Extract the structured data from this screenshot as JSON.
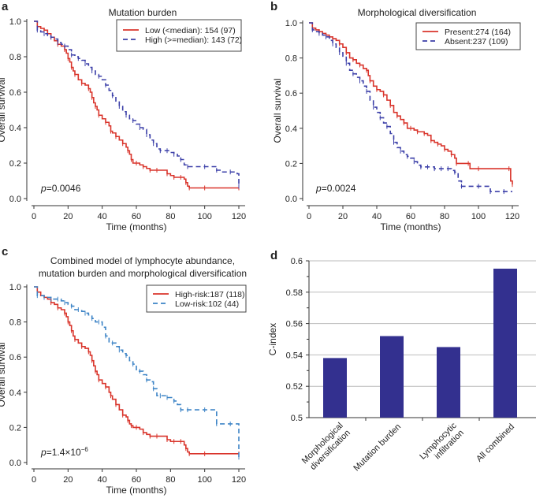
{
  "colors": {
    "red": "#d9342b",
    "blue_dark": "#3b3fa8",
    "blue_light": "#3d84c6",
    "bar": "#33308f",
    "axis": "#333333",
    "grid": "#bbbbbb"
  },
  "chart_data": [
    {
      "panel": "a",
      "type": "line",
      "title": "Mutation burden",
      "xlabel": "Time (months)",
      "ylabel": "Overall survival",
      "xlim": [
        0,
        120
      ],
      "ylim": [
        0,
        1.0
      ],
      "xticks": [
        "0",
        "20",
        "40",
        "60",
        "80",
        "100",
        "120"
      ],
      "yticks": [
        "0.0",
        "0.2",
        "0.4",
        "0.6",
        "0.8",
        "1.0"
      ],
      "legend_position": "top-right",
      "annotation": {
        "italic": "p",
        "text": "=0.0046"
      },
      "series": [
        {
          "name": "Low (<median): 154 (97)",
          "style": "solid",
          "color_key": "red",
          "x": [
            0,
            2,
            4,
            6,
            8,
            10,
            12,
            14,
            16,
            18,
            19,
            20,
            21,
            22,
            23,
            24,
            26,
            28,
            30,
            32,
            33,
            34,
            35,
            36,
            37,
            38,
            40,
            42,
            44,
            45,
            46,
            48,
            50,
            52,
            54,
            55,
            56,
            57,
            58,
            60,
            62,
            64,
            66,
            68,
            70,
            72,
            76,
            78,
            80,
            82,
            84,
            86,
            88,
            89,
            90,
            91,
            95,
            100,
            110,
            120
          ],
          "y": [
            1.0,
            0.97,
            0.96,
            0.95,
            0.93,
            0.91,
            0.89,
            0.87,
            0.86,
            0.84,
            0.82,
            0.79,
            0.77,
            0.74,
            0.72,
            0.7,
            0.67,
            0.65,
            0.64,
            0.62,
            0.6,
            0.57,
            0.54,
            0.52,
            0.5,
            0.47,
            0.45,
            0.43,
            0.41,
            0.38,
            0.37,
            0.35,
            0.33,
            0.31,
            0.29,
            0.27,
            0.25,
            0.22,
            0.2,
            0.2,
            0.19,
            0.18,
            0.17,
            0.16,
            0.16,
            0.16,
            0.16,
            0.14,
            0.13,
            0.12,
            0.12,
            0.12,
            0.11,
            0.09,
            0.07,
            0.06,
            0.06,
            0.06,
            0.06,
            0.06
          ]
        },
        {
          "name": "High (>=median): 143 (72)",
          "style": "dashed",
          "color_key": "blue_dark",
          "x": [
            0,
            2,
            4,
            6,
            8,
            10,
            12,
            14,
            16,
            18,
            20,
            22,
            24,
            26,
            28,
            30,
            32,
            34,
            36,
            38,
            40,
            42,
            44,
            46,
            48,
            50,
            52,
            54,
            56,
            58,
            60,
            62,
            64,
            66,
            68,
            70,
            72,
            74,
            76,
            78,
            80,
            82,
            84,
            86,
            88,
            90,
            95,
            100,
            105,
            107,
            110,
            115,
            119,
            120
          ],
          "y": [
            1.0,
            0.95,
            0.94,
            0.93,
            0.92,
            0.91,
            0.9,
            0.88,
            0.87,
            0.86,
            0.84,
            0.81,
            0.8,
            0.79,
            0.78,
            0.76,
            0.74,
            0.72,
            0.7,
            0.69,
            0.67,
            0.64,
            0.61,
            0.58,
            0.55,
            0.52,
            0.49,
            0.47,
            0.45,
            0.44,
            0.42,
            0.4,
            0.39,
            0.36,
            0.33,
            0.31,
            0.28,
            0.27,
            0.27,
            0.27,
            0.26,
            0.25,
            0.24,
            0.22,
            0.19,
            0.18,
            0.18,
            0.18,
            0.18,
            0.16,
            0.15,
            0.15,
            0.14,
            0.07
          ]
        }
      ]
    },
    {
      "panel": "b",
      "type": "line",
      "title": "Morphological diversification",
      "xlabel": "Time (months)",
      "ylabel": "Overall survival",
      "xlim": [
        0,
        120
      ],
      "ylim": [
        0,
        1.0
      ],
      "xticks": [
        "0",
        "20",
        "40",
        "60",
        "80",
        "100",
        "120"
      ],
      "yticks": [
        "0.0",
        "0.2",
        "0.4",
        "0.6",
        "0.8",
        "1.0"
      ],
      "legend_position": "top-right",
      "annotation": {
        "italic": "p",
        "text": "=0.0024"
      },
      "series": [
        {
          "name": "Present:274 (164)",
          "style": "solid",
          "color_key": "red",
          "x": [
            0,
            2,
            4,
            6,
            8,
            10,
            12,
            14,
            16,
            18,
            20,
            22,
            24,
            26,
            28,
            30,
            32,
            34,
            35,
            36,
            38,
            40,
            42,
            44,
            46,
            48,
            50,
            52,
            54,
            56,
            58,
            60,
            62,
            64,
            66,
            68,
            70,
            72,
            74,
            76,
            78,
            80,
            82,
            84,
            86,
            87,
            90,
            94,
            95,
            100,
            110,
            118,
            119,
            120
          ],
          "y": [
            1.0,
            0.97,
            0.96,
            0.95,
            0.94,
            0.93,
            0.92,
            0.91,
            0.9,
            0.88,
            0.86,
            0.83,
            0.8,
            0.79,
            0.77,
            0.76,
            0.74,
            0.73,
            0.7,
            0.67,
            0.64,
            0.62,
            0.61,
            0.59,
            0.56,
            0.53,
            0.49,
            0.47,
            0.45,
            0.43,
            0.4,
            0.4,
            0.39,
            0.38,
            0.38,
            0.37,
            0.36,
            0.33,
            0.32,
            0.31,
            0.3,
            0.28,
            0.27,
            0.25,
            0.23,
            0.2,
            0.2,
            0.2,
            0.17,
            0.17,
            0.17,
            0.17,
            0.1,
            0.08
          ]
        },
        {
          "name": "Absent:237 (109)",
          "style": "dashed",
          "color_key": "blue_dark",
          "x": [
            0,
            2,
            4,
            6,
            8,
            10,
            12,
            14,
            16,
            18,
            20,
            22,
            24,
            26,
            28,
            30,
            32,
            34,
            36,
            38,
            40,
            42,
            44,
            46,
            48,
            50,
            52,
            54,
            56,
            58,
            60,
            62,
            64,
            66,
            68,
            70,
            72,
            74,
            76,
            78,
            80,
            82,
            84,
            86,
            88,
            90,
            95,
            100,
            105,
            107,
            110,
            115,
            120
          ],
          "y": [
            1.0,
            0.96,
            0.95,
            0.94,
            0.93,
            0.92,
            0.9,
            0.88,
            0.86,
            0.83,
            0.81,
            0.77,
            0.73,
            0.71,
            0.69,
            0.67,
            0.64,
            0.61,
            0.56,
            0.52,
            0.49,
            0.46,
            0.43,
            0.41,
            0.37,
            0.32,
            0.29,
            0.27,
            0.25,
            0.24,
            0.23,
            0.21,
            0.19,
            0.18,
            0.18,
            0.18,
            0.18,
            0.17,
            0.17,
            0.17,
            0.17,
            0.17,
            0.16,
            0.15,
            0.1,
            0.07,
            0.07,
            0.07,
            0.07,
            0.04,
            0.04,
            0.04,
            0.04
          ]
        }
      ]
    },
    {
      "panel": "c",
      "type": "line",
      "title": "Combined model of lymphocyte abundance,\nmutation burden and morphological diversification",
      "title_lines": [
        "Combined model of lymphocyte abundance,",
        "mutation burden and morphological diversification"
      ],
      "xlabel": "Time (months)",
      "ylabel": "Overall survival",
      "xlim": [
        0,
        120
      ],
      "ylim": [
        0,
        1.0
      ],
      "xticks": [
        "0",
        "20",
        "40",
        "60",
        "80",
        "100",
        "120"
      ],
      "yticks": [
        "0.0",
        "0.2",
        "0.4",
        "0.6",
        "0.8",
        "1.0"
      ],
      "legend_position": "top-right",
      "annotation": {
        "italic": "p",
        "text": "=1.4×10",
        "superscript": "−6"
      },
      "series": [
        {
          "name": "High-risk:187 (118)",
          "style": "solid",
          "color_key": "red",
          "x": [
            0,
            2,
            4,
            6,
            8,
            10,
            12,
            14,
            16,
            18,
            19,
            20,
            21,
            22,
            23,
            24,
            26,
            28,
            30,
            32,
            33,
            34,
            35,
            36,
            37,
            38,
            40,
            42,
            44,
            45,
            46,
            48,
            50,
            52,
            54,
            55,
            56,
            57,
            58,
            60,
            62,
            64,
            66,
            68,
            70,
            72,
            76,
            78,
            80,
            82,
            84,
            86,
            88,
            89,
            90,
            91,
            95,
            100,
            110,
            120
          ],
          "y": [
            1.0,
            0.97,
            0.95,
            0.94,
            0.93,
            0.91,
            0.9,
            0.88,
            0.87,
            0.85,
            0.83,
            0.8,
            0.78,
            0.75,
            0.72,
            0.7,
            0.68,
            0.66,
            0.65,
            0.63,
            0.61,
            0.58,
            0.55,
            0.52,
            0.5,
            0.47,
            0.45,
            0.43,
            0.4,
            0.38,
            0.36,
            0.33,
            0.3,
            0.27,
            0.26,
            0.24,
            0.22,
            0.21,
            0.2,
            0.2,
            0.19,
            0.17,
            0.16,
            0.15,
            0.15,
            0.15,
            0.15,
            0.13,
            0.12,
            0.12,
            0.12,
            0.12,
            0.1,
            0.08,
            0.06,
            0.05,
            0.05,
            0.05,
            0.05,
            0.05
          ]
        },
        {
          "name": "Low-risk:102 (44)",
          "style": "dashed",
          "color_key": "blue_light",
          "x": [
            0,
            2,
            4,
            6,
            8,
            10,
            12,
            14,
            16,
            18,
            20,
            22,
            24,
            26,
            28,
            30,
            32,
            34,
            36,
            38,
            40,
            42,
            44,
            46,
            48,
            50,
            52,
            54,
            56,
            58,
            60,
            62,
            64,
            66,
            68,
            70,
            72,
            74,
            76,
            78,
            80,
            82,
            84,
            86,
            88,
            90,
            95,
            100,
            105,
            107,
            110,
            115,
            119,
            120
          ],
          "y": [
            1.0,
            0.95,
            0.95,
            0.94,
            0.94,
            0.93,
            0.93,
            0.93,
            0.92,
            0.91,
            0.9,
            0.89,
            0.87,
            0.87,
            0.86,
            0.85,
            0.84,
            0.82,
            0.8,
            0.8,
            0.77,
            0.72,
            0.68,
            0.68,
            0.66,
            0.64,
            0.62,
            0.61,
            0.58,
            0.56,
            0.52,
            0.52,
            0.5,
            0.47,
            0.46,
            0.42,
            0.38,
            0.38,
            0.38,
            0.37,
            0.37,
            0.35,
            0.33,
            0.3,
            0.3,
            0.3,
            0.3,
            0.3,
            0.3,
            0.22,
            0.22,
            0.22,
            0.22,
            0.03
          ]
        }
      ]
    },
    {
      "panel": "d",
      "type": "bar",
      "title": "",
      "xlabel": "",
      "ylabel": "C-index",
      "ylim": [
        0.5,
        0.6
      ],
      "yticks": [
        "0.5",
        "0.52",
        "0.54",
        "0.56",
        "0.58",
        "0.6"
      ],
      "grid": true,
      "categories": [
        [
          "Morphological",
          "diversification"
        ],
        [
          "Mutation burden"
        ],
        [
          "Lymphocytic",
          "infiltration"
        ],
        [
          "All combined"
        ]
      ],
      "values": [
        0.538,
        0.552,
        0.545,
        0.595
      ]
    }
  ],
  "panel_labels": [
    "a",
    "b",
    "c",
    "d"
  ]
}
